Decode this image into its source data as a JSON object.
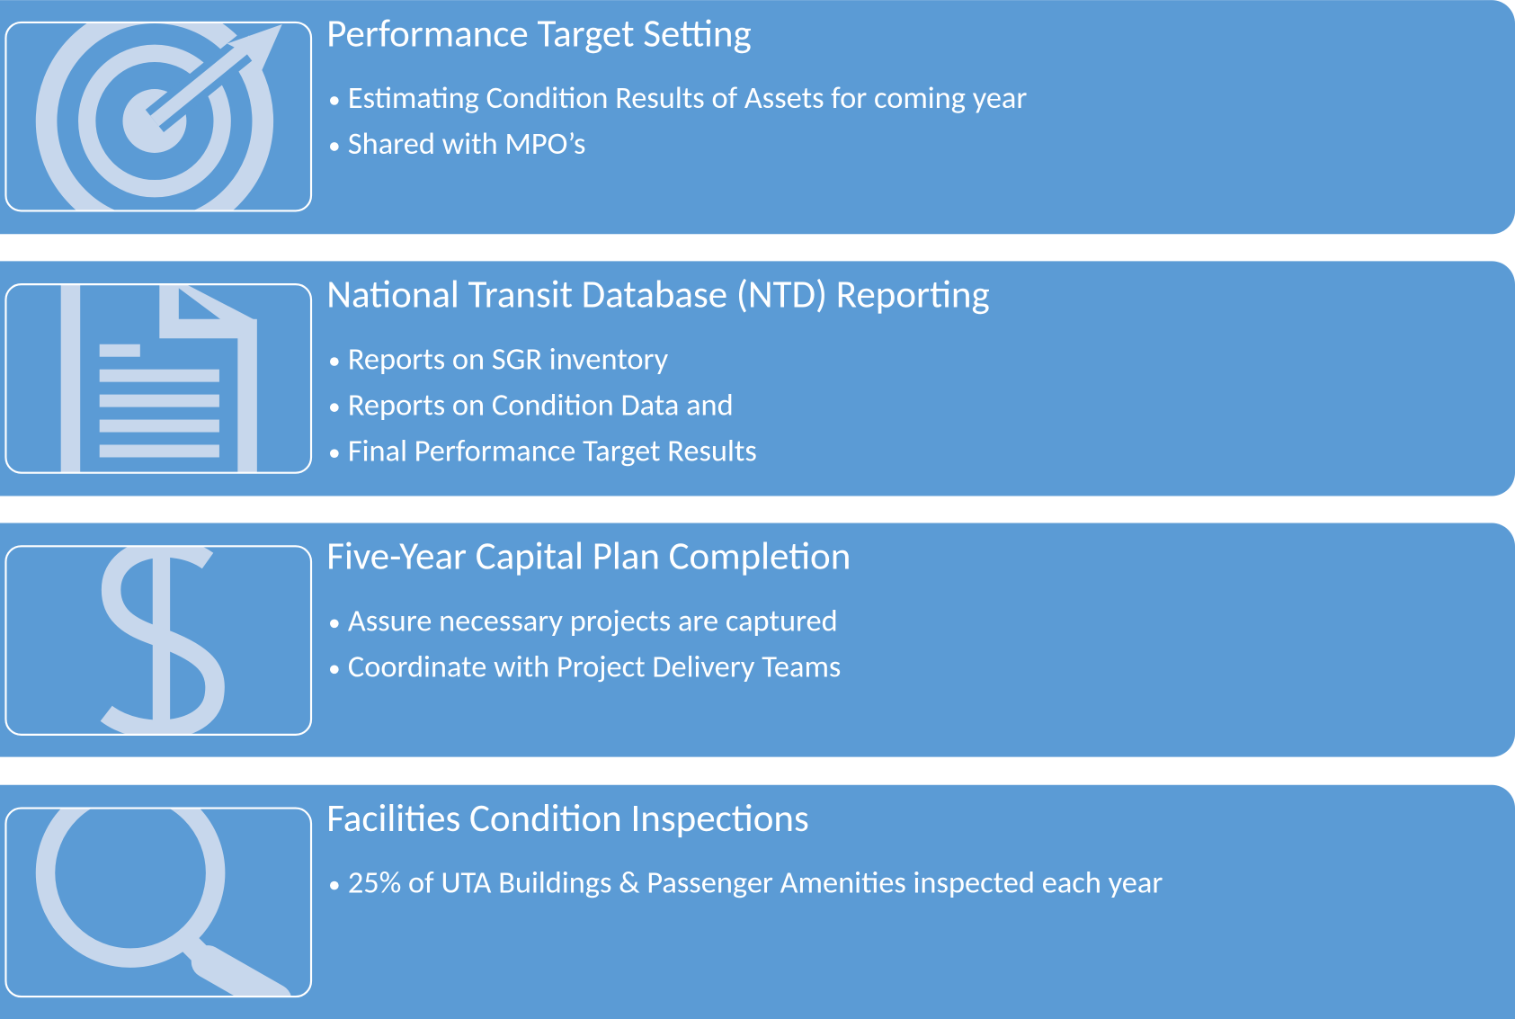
{
  "sections": [
    {
      "title": "Performance Target Setting",
      "bullets": [
        "Estimating Condition Results of Assets for coming year",
        "Shared with MPO’s"
      ]
    },
    {
      "title": "National Transit Database (NTD) Reporting",
      "bullets": [
        "Reports on SGR inventory",
        "Reports on Condition Data and",
        "Final Performance Target Results"
      ]
    },
    {
      "title": "Five-Year Capital Plan Completion",
      "bullets": [
        "Assure necessary projects are captured",
        "Coordinate with Project Delivery Teams"
      ]
    },
    {
      "title": "Facilities Condition Inspections",
      "bullets": [
        "25% of UTA Buildings & Passenger Amenities inspected each year"
      ]
    }
  ]
}
